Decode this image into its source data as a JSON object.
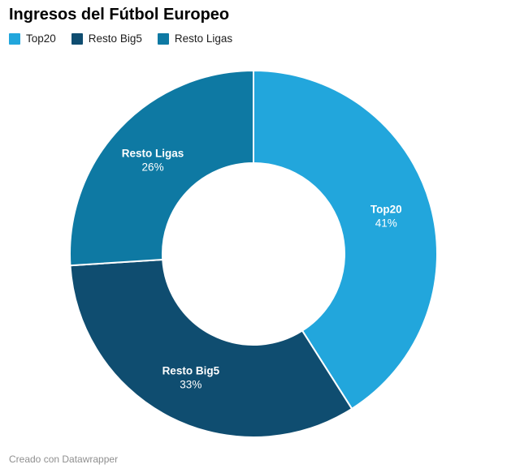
{
  "header": {
    "title": "Ingresos del Fútbol Europeo"
  },
  "footer": {
    "attribution": "Creado con Datawrapper"
  },
  "chart_data": {
    "type": "pie",
    "subtype": "donut",
    "title": "Ingresos del Fútbol Europeo",
    "categories": [
      "Top20",
      "Resto Big5",
      "Resto Ligas"
    ],
    "values": [
      41,
      33,
      26
    ],
    "unit": "%",
    "colors": [
      "#22A6DC",
      "#0F4D70",
      "#0E79A3"
    ],
    "label_color": "#ffffff",
    "legend_position": "top",
    "start_angle_deg": 0,
    "direction": "clockwise",
    "donut_hole_ratio": 0.5,
    "separator_color": "#ffffff"
  }
}
